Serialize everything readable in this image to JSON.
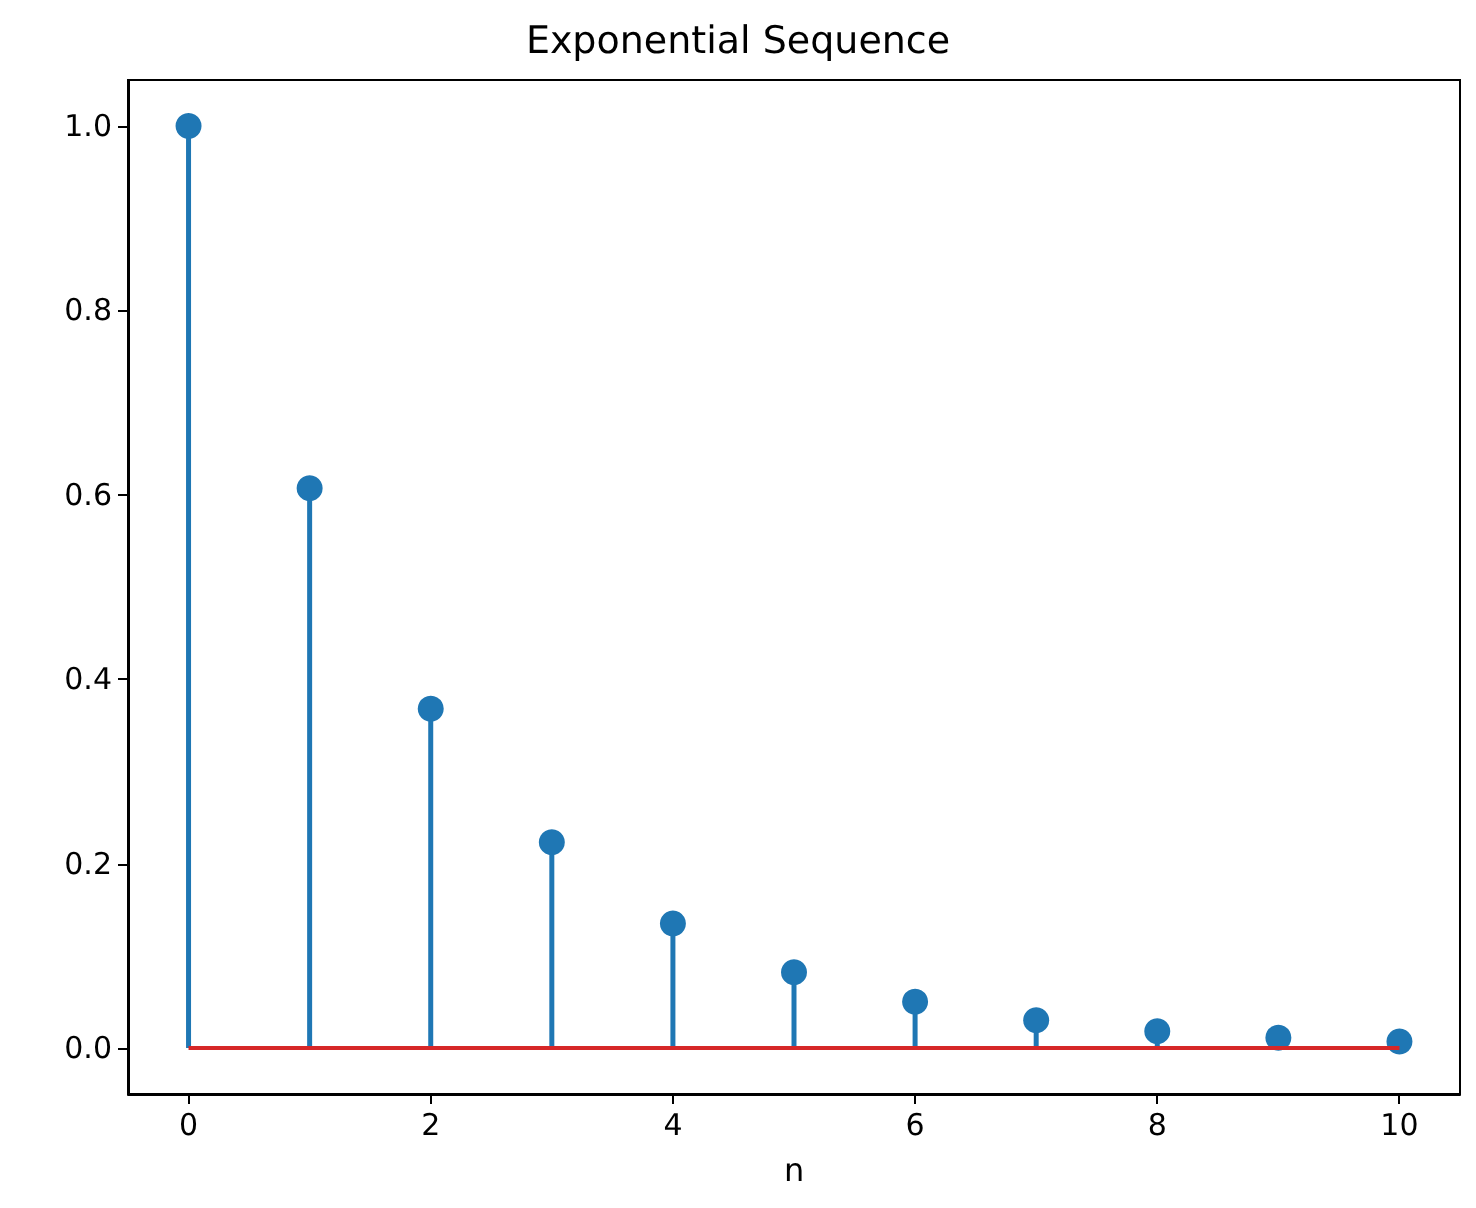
{
  "chart_data": {
    "type": "lollipop",
    "title": "Exponential Sequence",
    "xlabel": "n",
    "x": [
      0,
      1,
      2,
      3,
      4,
      5,
      6,
      7,
      8,
      9,
      10
    ],
    "values": [
      1.0,
      0.607,
      0.368,
      0.223,
      0.135,
      0.082,
      0.05,
      0.03,
      0.018,
      0.011,
      0.007
    ],
    "color": "#1f77b4",
    "marker": "circle",
    "grid": false,
    "xlim": [
      -0.5,
      10.5
    ],
    "xticks": [
      0,
      2,
      4,
      6,
      8,
      10
    ],
    "ylim": [
      -0.05,
      1.05
    ],
    "yticks": [
      {
        "value": 0,
        "label": "0.0"
      },
      {
        "value": 0.2,
        "label": "0.2"
      },
      {
        "value": 0.4,
        "label": "0.4"
      },
      {
        "value": 0.6,
        "label": "0.6"
      },
      {
        "value": 0.8,
        "label": "0.8"
      },
      {
        "value": 1.0,
        "label": "1.0"
      }
    ],
    "ref_lines": [
      {
        "axis": "y",
        "value": 0,
        "color": "#d62728"
      }
    ]
  }
}
